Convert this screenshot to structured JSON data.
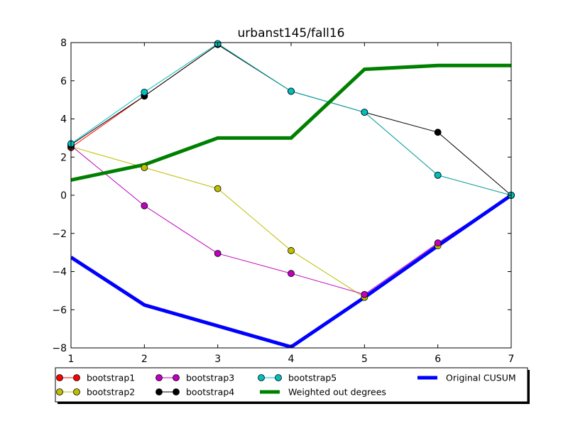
{
  "chart_data": {
    "type": "line",
    "title": "urbanst145/fall16",
    "xlabel": "",
    "ylabel": "",
    "xlim": [
      1,
      7
    ],
    "ylim": [
      -8,
      8
    ],
    "xticks": [
      1,
      2,
      3,
      4,
      5,
      6,
      7
    ],
    "yticks": [
      -8,
      -6,
      -4,
      -2,
      0,
      2,
      4,
      6,
      8
    ],
    "ytick_labels": [
      "−8",
      "−6",
      "−4",
      "−2",
      "0",
      "2",
      "4",
      "6",
      "8"
    ],
    "grid": false,
    "legend_position": "below-plot",
    "x": [
      1,
      2,
      3,
      4,
      5,
      6,
      7
    ],
    "series": [
      {
        "name": "bootstrap1",
        "color": "#ff0000",
        "marker": true,
        "linewidth": 1,
        "values": [
          2.5,
          5.2,
          7.9,
          5.45,
          4.35,
          1.05,
          0.0
        ]
      },
      {
        "name": "bootstrap2",
        "color": "#bfbf00",
        "marker": true,
        "linewidth": 1,
        "values": [
          2.55,
          1.45,
          0.35,
          -2.9,
          -5.35,
          -2.65,
          0.0
        ]
      },
      {
        "name": "bootstrap3",
        "color": "#bf00bf",
        "marker": true,
        "linewidth": 1,
        "values": [
          2.6,
          -0.55,
          -3.05,
          -4.1,
          -5.2,
          -2.5,
          0.0
        ]
      },
      {
        "name": "bootstrap4",
        "color": "#000000",
        "marker": true,
        "linewidth": 1,
        "values": [
          2.65,
          5.2,
          7.9,
          5.45,
          4.35,
          3.3,
          0.0
        ]
      },
      {
        "name": "bootstrap5",
        "color": "#00bfbf",
        "marker": true,
        "linewidth": 1,
        "values": [
          2.7,
          5.4,
          7.95,
          5.45,
          4.35,
          1.05,
          0.0
        ]
      },
      {
        "name": "Weighted out degrees",
        "color": "#008000",
        "marker": false,
        "linewidth": 5,
        "values": [
          0.8,
          1.6,
          3.0,
          3.0,
          6.6,
          6.8,
          6.8
        ]
      },
      {
        "name": "Original CUSUM",
        "color": "#0000ff",
        "marker": false,
        "linewidth": 5,
        "values": [
          -3.25,
          -5.75,
          -6.85,
          -7.95,
          -5.35,
          -2.65,
          0.0
        ]
      }
    ]
  }
}
